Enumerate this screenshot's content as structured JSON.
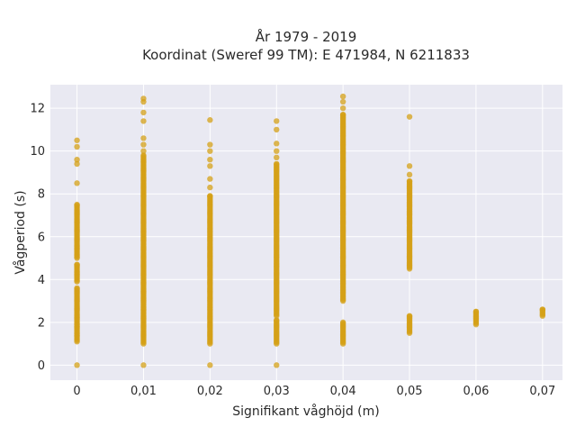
{
  "chart_data": {
    "type": "scatter",
    "title_line1": "År 1979 - 2019",
    "title_line2": "Koordinat (Sweref 99 TM): E 471984, N 6211833",
    "xlabel": "Signifikant våghöjd (m)",
    "ylabel": "Vågperiod (s)",
    "xlim": [
      -0.004,
      0.073
    ],
    "ylim": [
      -0.7,
      13.1
    ],
    "x_ticks": [
      0,
      0.01,
      0.02,
      0.03,
      0.04,
      0.05,
      0.06,
      0.07
    ],
    "x_tick_labels": [
      "0",
      "0,01",
      "0,02",
      "0,03",
      "0,04",
      "0,05",
      "0,06",
      "0,07"
    ],
    "y_ticks": [
      0,
      2,
      4,
      6,
      8,
      10,
      12
    ],
    "y_tick_labels": [
      "0",
      "2",
      "4",
      "6",
      "8",
      "10",
      "12"
    ],
    "grid": true,
    "legend": "none",
    "colors": {
      "point": "#d4a017",
      "plot_bg": "#e9e9f2",
      "grid": "#ffffff"
    },
    "columns": [
      {
        "x": 0,
        "ranges": [
          [
            1.1,
            3.6
          ],
          [
            3.9,
            4.7
          ],
          [
            5.0,
            7.5
          ]
        ],
        "points": [
          0,
          8.5,
          9.4,
          9.6,
          10.2,
          10.5
        ]
      },
      {
        "x": 0.01,
        "ranges": [
          [
            1.0,
            9.8
          ]
        ],
        "points": [
          0,
          10.0,
          10.3,
          10.6,
          11.4,
          11.8,
          12.3,
          12.45
        ]
      },
      {
        "x": 0.02,
        "ranges": [
          [
            1.0,
            7.9
          ]
        ],
        "points": [
          0,
          8.3,
          8.7,
          9.3,
          9.6,
          10.0,
          10.3,
          11.45
        ]
      },
      {
        "x": 0.03,
        "ranges": [
          [
            1.0,
            2.1
          ],
          [
            2.3,
            9.4
          ]
        ],
        "points": [
          0,
          9.7,
          10.0,
          10.35,
          11.0,
          11.4
        ]
      },
      {
        "x": 0.04,
        "ranges": [
          [
            1.0,
            2.0
          ],
          [
            3.0,
            11.7
          ]
        ],
        "points": [
          12.0,
          12.3,
          12.55
        ]
      },
      {
        "x": 0.05,
        "ranges": [
          [
            1.5,
            2.3
          ],
          [
            4.5,
            8.6
          ]
        ],
        "points": [
          8.9,
          9.3,
          11.6
        ]
      },
      {
        "x": 0.06,
        "ranges": [
          [
            1.9,
            2.5
          ]
        ],
        "points": []
      },
      {
        "x": 0.07,
        "ranges": [
          [
            2.3,
            2.6
          ]
        ],
        "points": []
      }
    ]
  }
}
